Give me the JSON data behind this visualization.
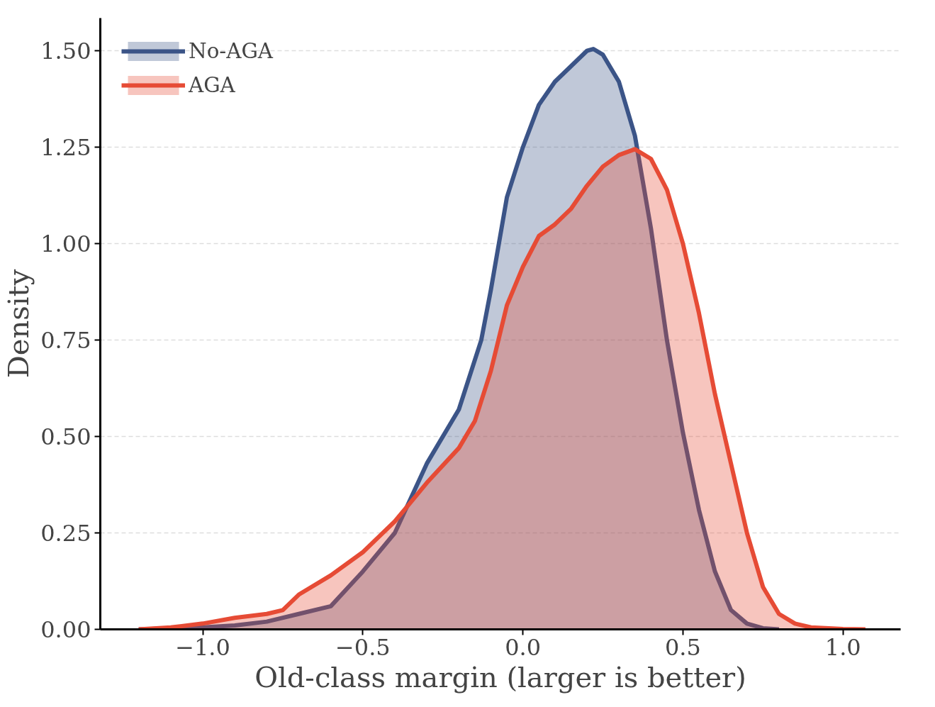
{
  "chart_data": {
    "type": "area",
    "xlabel": "Old-class margin (larger is better)",
    "ylabel": "Density",
    "xlim": [
      -1.32,
      1.18
    ],
    "xticks": [
      {
        "value": -1.0,
        "label": "−1.0"
      },
      {
        "value": -0.5,
        "label": "−0.5"
      },
      {
        "value": 0.0,
        "label": "0.0"
      },
      {
        "value": 0.5,
        "label": "0.5"
      },
      {
        "value": 1.0,
        "label": "1.0"
      }
    ],
    "ylim": [
      0,
      1.585
    ],
    "yticks": [
      {
        "value": 0,
        "label": "0.00"
      },
      {
        "value": 0.25,
        "label": "0.25"
      },
      {
        "value": 0.5,
        "label": "0.50"
      },
      {
        "value": 0.75,
        "label": "0.75"
      },
      {
        "value": 1.0,
        "label": "1.00"
      },
      {
        "value": 1.25,
        "label": "1.25"
      },
      {
        "value": 1.5,
        "label": "1.50"
      }
    ],
    "grid": "y",
    "legend": "top left",
    "series": [
      {
        "name": "No-AGA",
        "color": "#3b5487",
        "x": [
          -1.2,
          -1.0,
          -0.9,
          -0.8,
          -0.7,
          -0.6,
          -0.5,
          -0.4,
          -0.3,
          -0.2,
          -0.13,
          -0.1,
          -0.05,
          0.0,
          0.05,
          0.1,
          0.15,
          0.2,
          0.22,
          0.25,
          0.3,
          0.35,
          0.4,
          0.45,
          0.5,
          0.55,
          0.6,
          0.65,
          0.7,
          0.75,
          0.8
        ],
        "values": [
          0,
          0.005,
          0.01,
          0.02,
          0.04,
          0.06,
          0.15,
          0.25,
          0.43,
          0.57,
          0.75,
          0.88,
          1.12,
          1.25,
          1.36,
          1.42,
          1.46,
          1.5,
          1.505,
          1.49,
          1.42,
          1.28,
          1.04,
          0.75,
          0.51,
          0.31,
          0.15,
          0.05,
          0.015,
          0.003,
          0
        ]
      },
      {
        "name": "AGA",
        "color": "#e64b35",
        "x": [
          -1.2,
          -1.1,
          -1.0,
          -0.9,
          -0.8,
          -0.75,
          -0.7,
          -0.6,
          -0.5,
          -0.4,
          -0.3,
          -0.2,
          -0.15,
          -0.1,
          -0.05,
          0.0,
          0.05,
          0.1,
          0.15,
          0.2,
          0.25,
          0.3,
          0.35,
          0.4,
          0.45,
          0.5,
          0.55,
          0.6,
          0.65,
          0.7,
          0.75,
          0.8,
          0.85,
          0.9,
          1.0,
          1.07
        ],
        "values": [
          0,
          0.005,
          0.015,
          0.03,
          0.04,
          0.05,
          0.09,
          0.14,
          0.2,
          0.28,
          0.38,
          0.47,
          0.54,
          0.67,
          0.84,
          0.94,
          1.02,
          1.05,
          1.09,
          1.15,
          1.2,
          1.23,
          1.245,
          1.22,
          1.14,
          1.0,
          0.82,
          0.61,
          0.43,
          0.25,
          0.11,
          0.04,
          0.015,
          0.005,
          0.001,
          0
        ]
      }
    ]
  }
}
